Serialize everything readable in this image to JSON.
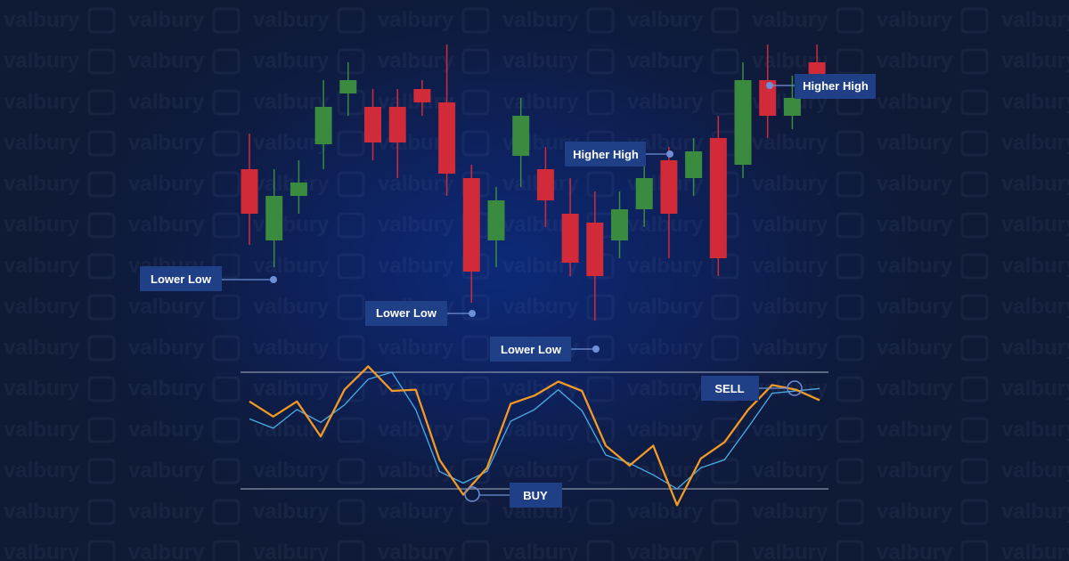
{
  "watermark": {
    "brand": "valbury",
    "icon": "valbury-logo-icon"
  },
  "colors": {
    "background": "#0f1a35",
    "bullish": "#3a8a3f",
    "bearish": "#d12b3a",
    "label_bg": "#1f3f86",
    "k_line": "#f29a24",
    "d_line": "#4aaee6",
    "band_line": "#8a94aa",
    "connector": "#6e8fd6"
  },
  "annotations": {
    "lower_low_1": "Lower Low",
    "lower_low_2": "Lower Low",
    "lower_low_3": "Lower Low",
    "higher_high_1": "Higher High",
    "higher_high_2": "Higher High",
    "buy": "BUY",
    "sell": "SELL"
  },
  "chart_data": [
    {
      "type": "candlestick",
      "title": "",
      "candles": [
        {
          "o": 230,
          "c": 180,
          "h": 270,
          "l": 145
        },
        {
          "o": 150,
          "c": 200,
          "h": 230,
          "l": 120
        },
        {
          "o": 200,
          "c": 215,
          "h": 240,
          "l": 180
        },
        {
          "o": 258,
          "c": 300,
          "h": 330,
          "l": 230
        },
        {
          "o": 315,
          "c": 330,
          "h": 350,
          "l": 290
        },
        {
          "o": 300,
          "c": 260,
          "h": 320,
          "l": 240
        },
        {
          "o": 300,
          "c": 260,
          "h": 320,
          "l": 220
        },
        {
          "o": 320,
          "c": 305,
          "h": 330,
          "l": 290
        },
        {
          "o": 305,
          "c": 225,
          "h": 370,
          "l": 200
        },
        {
          "o": 220,
          "c": 115,
          "h": 235,
          "l": 80
        },
        {
          "o": 150,
          "c": 195,
          "h": 210,
          "l": 120
        },
        {
          "o": 245,
          "c": 290,
          "h": 310,
          "l": 210
        },
        {
          "o": 230,
          "c": 195,
          "h": 255,
          "l": 165
        },
        {
          "o": 180,
          "c": 125,
          "h": 220,
          "l": 110
        },
        {
          "o": 170,
          "c": 110,
          "h": 205,
          "l": 60
        },
        {
          "o": 150,
          "c": 185,
          "h": 205,
          "l": 130
        },
        {
          "o": 185,
          "c": 220,
          "h": 245,
          "l": 165
        },
        {
          "o": 240,
          "c": 180,
          "h": 255,
          "l": 130
        },
        {
          "o": 220,
          "c": 250,
          "h": 265,
          "l": 200
        },
        {
          "o": 265,
          "c": 130,
          "h": 290,
          "l": 110
        },
        {
          "o": 235,
          "c": 330,
          "h": 350,
          "l": 220
        },
        {
          "o": 330,
          "c": 290,
          "h": 370,
          "l": 265
        },
        {
          "o": 290,
          "c": 310,
          "h": 335,
          "l": 275
        },
        {
          "o": 350,
          "c": 335,
          "h": 370,
          "l": 320
        }
      ],
      "ylim": [
        0,
        400
      ]
    },
    {
      "type": "line",
      "title": "",
      "x": [
        0,
        1,
        2,
        3,
        4,
        5,
        6,
        7,
        8,
        9,
        10,
        11,
        12,
        13,
        14,
        15,
        16,
        17,
        18,
        19,
        20,
        21,
        22,
        23,
        24
      ],
      "series": [
        {
          "values": [
            75,
            62,
            75,
            45,
            85,
            105,
            84,
            85,
            25,
            -5,
            18,
            73,
            80,
            92,
            84,
            37,
            20,
            37,
            -14,
            26,
            40,
            68,
            89,
            85,
            76
          ]
        },
        {
          "values": [
            60,
            52,
            68,
            57,
            72,
            94,
            100,
            68,
            15,
            5,
            15,
            58,
            68,
            85,
            67,
            29,
            22,
            12,
            0,
            18,
            25,
            53,
            82,
            84,
            86
          ]
        }
      ],
      "reference_lines": [
        100,
        0
      ],
      "ylim": [
        -20,
        110
      ]
    }
  ]
}
